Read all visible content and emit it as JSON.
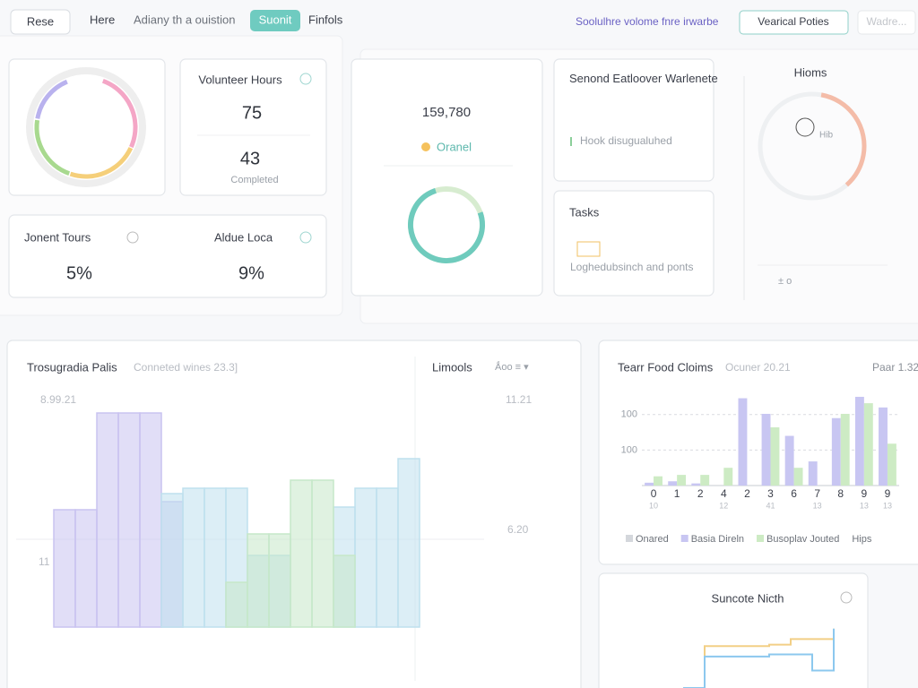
{
  "toolbar": {
    "buttons": [
      "Rese",
      "Here",
      "Adiany th a ouistion",
      "Suonit",
      "Finfols"
    ],
    "link": "Soolulhre volome fnre irwarbe",
    "actions": [
      "Vearical Poties",
      "Wadre..."
    ]
  },
  "cards": {
    "volunteer": {
      "title": "Volunteer Hours",
      "value": "75",
      "secondary": "43",
      "caption": "Completed"
    },
    "tours": {
      "left_title": "Jonent Tours",
      "left_value": "5%",
      "right_title": "Aldue Loca",
      "right_value": "9%"
    },
    "total": {
      "value": "159,780",
      "label": "Oranel"
    },
    "second": {
      "title": "Senond Eatloover Warlenete",
      "note": "Hook disugualuhed"
    },
    "tasks": {
      "title": "Tasks",
      "note": "Loghedubsinch and ponts"
    },
    "hioms": {
      "title": "Hioms",
      "inner": "Hib",
      "footer": "± o"
    }
  },
  "charts": [
    {
      "type": "step-area",
      "title": "Trosugradia Palis",
      "subtitle": "Conneted wines 23.3]",
      "side_title": "Limools",
      "side_control": "Ǻoo ≡ ▾",
      "annotations": [
        "8.99.21",
        "11",
        "11.21",
        "6.20"
      ],
      "ylim": [
        0,
        100
      ],
      "series": [
        {
          "color": "#c9c3f0",
          "values": [
            57,
            57,
            93,
            93,
            93,
            60,
            null,
            null,
            null,
            null,
            null,
            null,
            null,
            null,
            null,
            null,
            null,
            null,
            null,
            null
          ]
        },
        {
          "color": "#bfe0ee",
          "values": [
            null,
            null,
            null,
            null,
            null,
            63,
            65,
            65,
            65,
            40,
            40,
            null,
            null,
            58,
            65,
            65,
            76,
            null,
            null,
            null
          ]
        },
        {
          "color": "#c6e8c9",
          "values": [
            null,
            null,
            null,
            null,
            null,
            null,
            null,
            null,
            30,
            48,
            48,
            68,
            68,
            40,
            null,
            null,
            null,
            null,
            null,
            null
          ]
        }
      ]
    },
    {
      "type": "bar",
      "title": "Tearr Food Cloims",
      "subtitle": "Ocuner 20.21",
      "corner": "Paar 1.32",
      "categories": [
        "0",
        "1",
        "2",
        "4",
        "2",
        "3",
        "6",
        "7",
        "8",
        "9",
        "9"
      ],
      "x_sublabels": [
        "10",
        null,
        null,
        "12",
        null,
        "41",
        null,
        "13",
        null,
        "13",
        "13"
      ],
      "ylim": [
        0,
        130
      ],
      "yticks": [
        {
          "value": 50,
          "label": "100"
        },
        100
      ],
      "grid": true,
      "legend_extra": [
        "Onared",
        "Hips"
      ],
      "series": [
        {
          "name": "Basia Direln",
          "color": "#c8c6f2",
          "values": [
            4,
            6,
            3,
            0,
            123,
            101,
            70,
            34,
            95,
            125,
            110
          ]
        },
        {
          "name": "Busoplav Jouted",
          "color": "#cdebc4",
          "values": [
            13,
            15,
            15,
            25,
            0,
            82,
            25,
            0,
            101,
            116,
            59
          ]
        }
      ]
    },
    {
      "type": "step-line",
      "title": "Suncote Nicth",
      "ylim": [
        0,
        100
      ],
      "series": [
        {
          "color": "#f2cf86",
          "values": [
            0,
            60,
            60,
            60,
            62,
            70,
            70,
            85
          ]
        },
        {
          "color": "#8cc8ee",
          "values": [
            0,
            45,
            45,
            45,
            48,
            48,
            25,
            85
          ]
        }
      ]
    }
  ]
}
